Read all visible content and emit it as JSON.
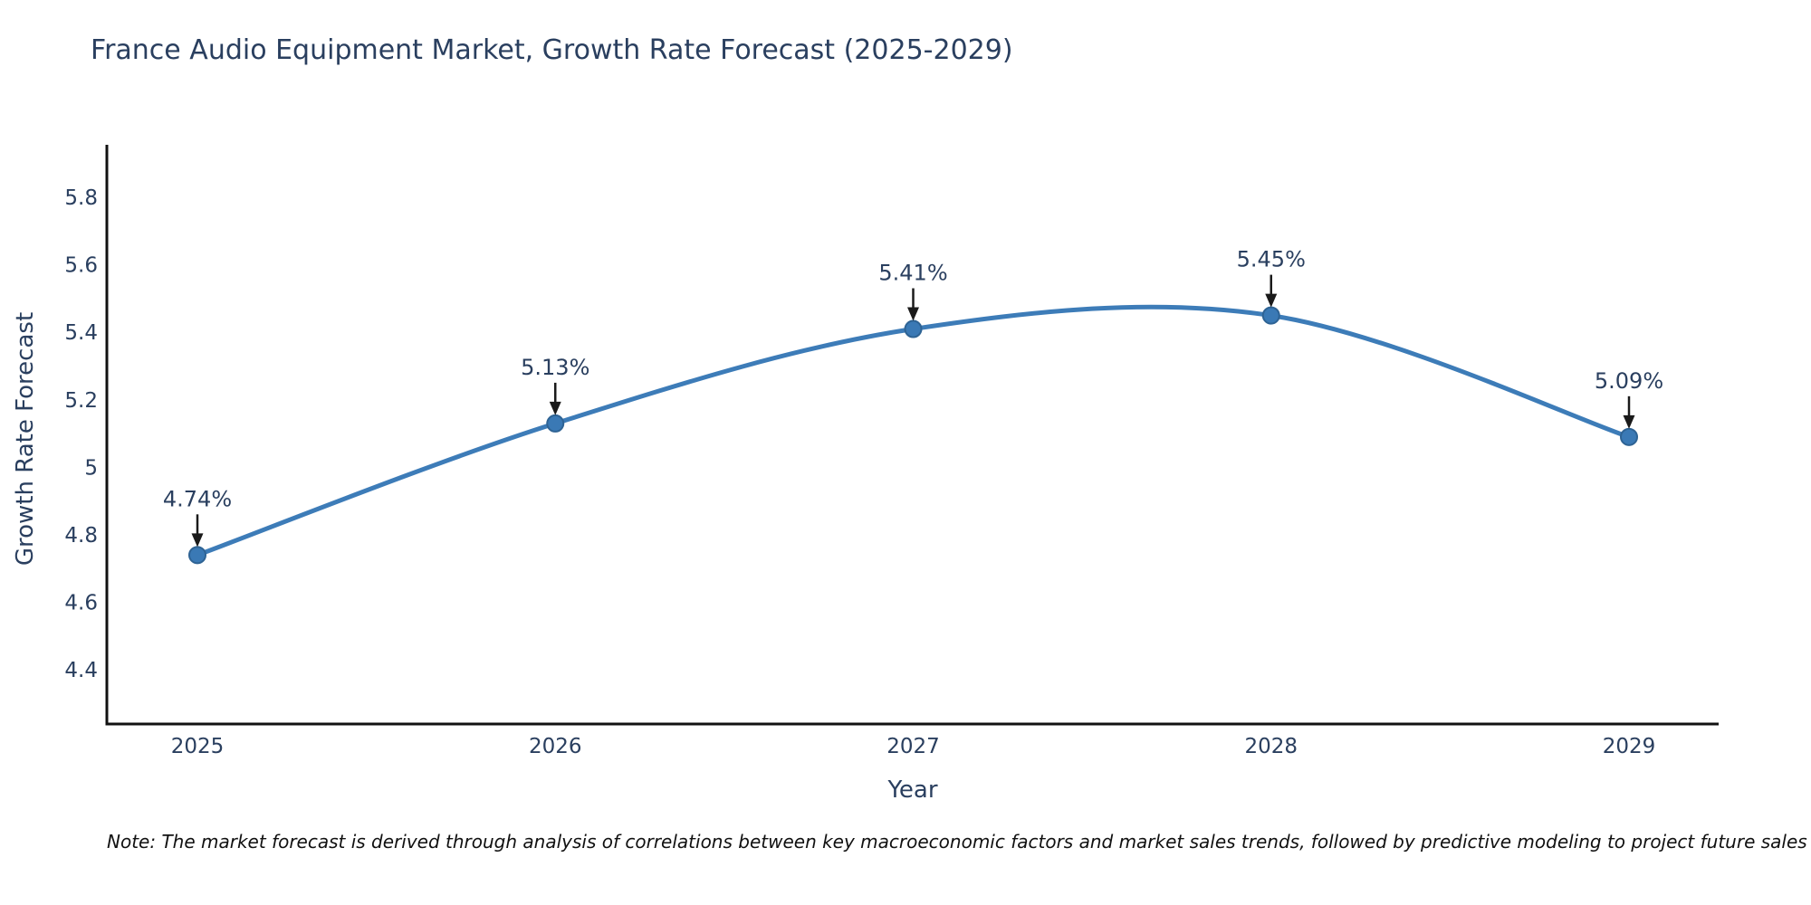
{
  "title": "France Audio Equipment Market, Growth Rate Forecast (2025-2029)",
  "footnote": "Note: The market forecast is derived through analysis of correlations between key macroeconomic factors and market sales trends, followed by predictive modeling to project future sales",
  "chart_data": {
    "type": "line",
    "title": "France Audio Equipment Market, Growth Rate Forecast (2025-2029)",
    "xlabel": "Year",
    "ylabel": "Growth Rate Forecast",
    "categories": [
      "2025",
      "2026",
      "2027",
      "2028",
      "2029"
    ],
    "series": [
      {
        "name": "Growth Rate Forecast",
        "values": [
          4.74,
          5.13,
          5.41,
          5.45,
          5.09
        ],
        "point_labels": [
          "4.74%",
          "5.13%",
          "5.41%",
          "5.45%",
          "5.09%"
        ]
      }
    ],
    "ytick_labels": [
      "4.4",
      "4.6",
      "4.8",
      "5",
      "5.2",
      "5.4",
      "5.6",
      "5.8"
    ],
    "ylim": [
      4.24,
      5.96
    ],
    "line_shape": "spline",
    "grid": false,
    "legend_position": "none",
    "colors": {
      "line": "#3d7cb8",
      "marker_fill": "#3a79b5",
      "marker_edge": "#2e6394",
      "axis_line": "#111111",
      "text": "#2a3f5f",
      "annotation_arrow": "#1a1a1a",
      "note_text": "#111111"
    }
  }
}
